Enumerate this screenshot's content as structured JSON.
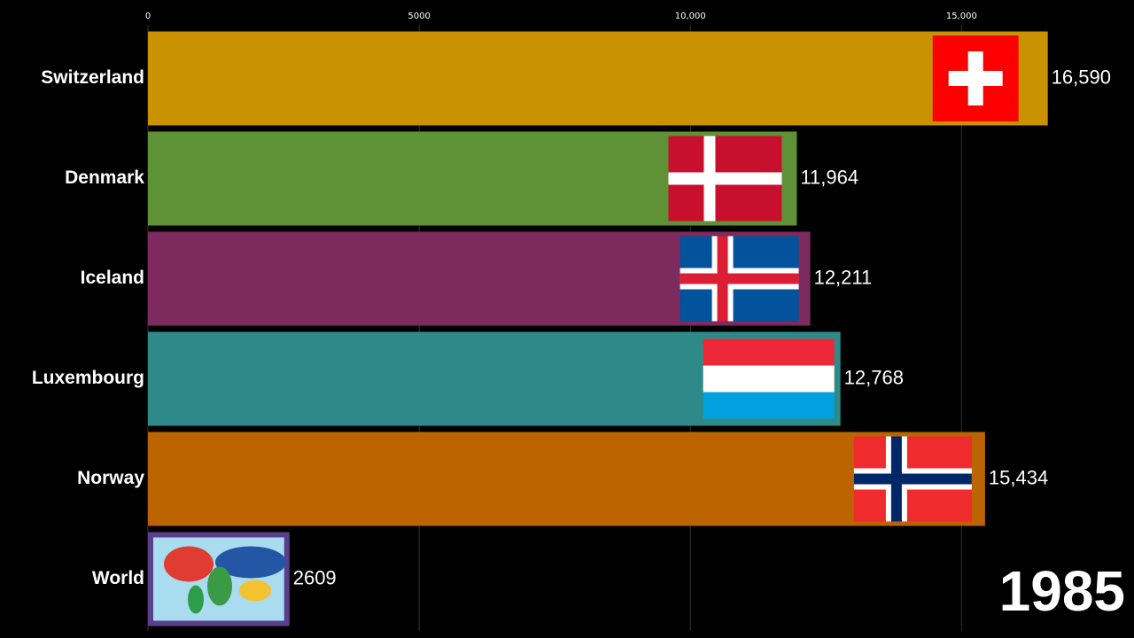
{
  "chart_data": {
    "type": "bar",
    "categories": [
      "Switzerland",
      "Denmark",
      "Iceland",
      "Luxembourg",
      "Norway",
      "World"
    ],
    "values": [
      16590,
      11964,
      12211,
      12768,
      15434,
      2609
    ],
    "value_labels": [
      "16,590",
      "11,964",
      "12,211",
      "12,768",
      "15,434",
      "2609"
    ],
    "colors": [
      "#c99200",
      "#5f9137",
      "#7d2b5e",
      "#2e8a89",
      "#bb6400",
      "#5a3f8a"
    ],
    "xlim": [
      0,
      18000
    ],
    "xticks": [
      0,
      5000,
      {
        "value": 10000,
        "label": "10,000"
      },
      {
        "value": 15000,
        "label": "15,000"
      }
    ],
    "grid": true,
    "annotation": "1985"
  }
}
